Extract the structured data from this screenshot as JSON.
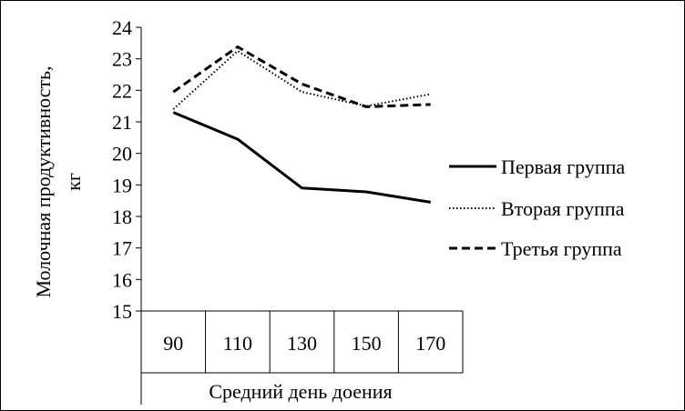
{
  "chart_data": {
    "type": "line",
    "categories": [
      "90",
      "110",
      "130",
      "150",
      "170"
    ],
    "ylim": [
      15,
      24
    ],
    "yticks": [
      "15",
      "16",
      "17",
      "18",
      "19",
      "20",
      "21",
      "22",
      "23",
      "24"
    ],
    "xlabel": "Средний день доения",
    "ylabel_line1": "Молочная продуктивность,",
    "ylabel_line2": "кг",
    "grid": false,
    "legend_position": "right",
    "series": [
      {
        "name": "Первая группа",
        "values": [
          21.3,
          20.45,
          18.9,
          18.78,
          18.45
        ],
        "style": "solid",
        "color": "#000000"
      },
      {
        "name": "Вторая группа",
        "values": [
          21.4,
          23.25,
          21.95,
          21.5,
          21.88
        ],
        "style": "dotted",
        "color": "#000000"
      },
      {
        "name": "Третья группа",
        "values": [
          21.95,
          23.38,
          22.2,
          21.48,
          21.55
        ],
        "style": "dashed",
        "color": "#000000"
      }
    ]
  }
}
